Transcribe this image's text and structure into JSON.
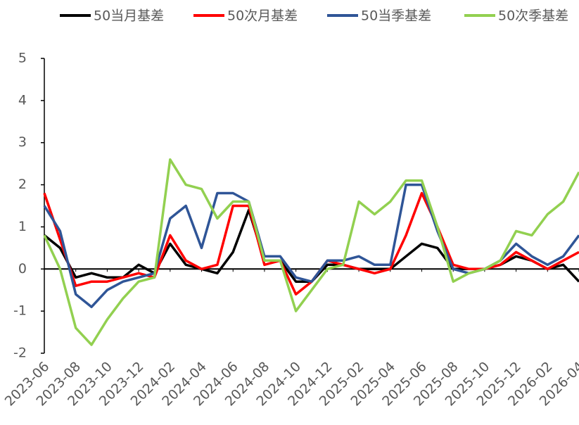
{
  "chart_data": {
    "type": "line",
    "x": [
      "2023-06",
      "2023-07",
      "2023-08",
      "2023-09",
      "2023-10",
      "2023-11",
      "2023-12",
      "2024-01",
      "2024-02",
      "2024-03",
      "2024-04",
      "2024-05",
      "2024-06",
      "2024-07",
      "2024-08",
      "2024-09",
      "2024-10",
      "2024-11",
      "2024-12",
      "2025-01",
      "2025-02",
      "2025-03",
      "2025-04",
      "2025-05",
      "2025-06",
      "2025-07",
      "2025-08",
      "2025-09",
      "2025-10",
      "2025-11",
      "2025-12",
      "2026-01",
      "2026-02",
      "2026-03",
      "2026-04"
    ],
    "series": [
      {
        "name": "50当月基差",
        "color": "#000000",
        "values": [
          0.8,
          0.5,
          -0.2,
          -0.1,
          -0.2,
          -0.2,
          0.1,
          -0.1,
          0.6,
          0.1,
          0.0,
          -0.1,
          0.4,
          1.4,
          0.2,
          0.2,
          -0.3,
          -0.3,
          0.1,
          0.1,
          0.0,
          0.0,
          0.0,
          0.3,
          0.6,
          0.5,
          0.0,
          0.0,
          0.0,
          0.1,
          0.3,
          0.2,
          0.0,
          0.1,
          -0.3
        ]
      },
      {
        "name": "50次月基差",
        "color": "#ff0000",
        "values": [
          1.8,
          0.7,
          -0.4,
          -0.3,
          -0.3,
          -0.2,
          -0.1,
          -0.2,
          0.8,
          0.2,
          0.0,
          0.1,
          1.5,
          1.5,
          0.1,
          0.2,
          -0.6,
          -0.3,
          0.2,
          0.1,
          0.0,
          -0.1,
          0.0,
          0.8,
          1.8,
          1.0,
          0.1,
          0.0,
          0.0,
          0.1,
          0.4,
          0.2,
          0.0,
          0.2,
          0.4
        ]
      },
      {
        "name": "50当季基差",
        "color": "#2f5597",
        "values": [
          1.5,
          0.9,
          -0.6,
          -0.9,
          -0.5,
          -0.3,
          -0.2,
          -0.1,
          1.2,
          1.5,
          0.5,
          1.8,
          1.8,
          1.6,
          0.3,
          0.3,
          -0.2,
          -0.3,
          0.2,
          0.2,
          0.3,
          0.1,
          0.1,
          2.0,
          2.0,
          0.9,
          0.0,
          -0.1,
          0.0,
          0.2,
          0.6,
          0.3,
          0.1,
          0.3,
          0.8
        ]
      },
      {
        "name": "50次季基差",
        "color": "#92d050",
        "values": [
          0.8,
          0.0,
          -1.4,
          -1.8,
          -1.2,
          -0.7,
          -0.3,
          -0.2,
          2.6,
          2.0,
          1.9,
          1.2,
          1.6,
          1.6,
          0.2,
          0.2,
          -1.0,
          -0.5,
          0.0,
          0.1,
          1.6,
          1.3,
          1.6,
          2.1,
          2.1,
          1.0,
          -0.3,
          -0.1,
          0.0,
          0.2,
          0.9,
          0.8,
          1.3,
          1.6,
          2.3
        ]
      }
    ],
    "xlim": [
      "2023-06",
      "2026-04"
    ],
    "xticks": [
      "2023-06",
      "2023-08",
      "2023-10",
      "2023-12",
      "2024-02",
      "2024-04",
      "2024-06",
      "2024-08",
      "2024-10",
      "2024-12",
      "2025-02",
      "2025-04",
      "2025-06",
      "2025-08",
      "2025-10",
      "2025-12",
      "2026-02",
      "2026-04"
    ],
    "ylim": [
      -2,
      5
    ],
    "yticks": [
      -2,
      -1,
      0,
      1,
      2,
      3,
      4,
      5
    ],
    "grid": false
  }
}
